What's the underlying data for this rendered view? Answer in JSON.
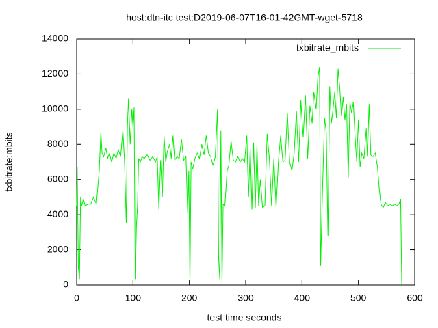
{
  "chart_data": {
    "type": "line",
    "title": "host:dtn-itc test:D2019-06-07T16-01-42GMT-wget-5718",
    "x_label": "test time seconds",
    "y_label": "txbitrate:mbits",
    "xlim": [
      0,
      600
    ],
    "xticks": [
      0,
      100,
      200,
      300,
      400,
      500,
      600
    ],
    "ylim": [
      0,
      14000
    ],
    "yticks": [
      0,
      2000,
      4000,
      6000,
      8000,
      10000,
      12000,
      14000
    ],
    "grid": false,
    "legend": "top-right",
    "x": [
      0,
      1,
      3,
      5,
      7,
      9,
      12,
      15,
      20,
      25,
      30,
      35,
      40,
      43,
      45,
      48,
      52,
      55,
      58,
      62,
      66,
      70,
      74,
      78,
      82,
      85,
      88,
      90,
      92,
      95,
      98,
      100,
      102,
      104,
      106,
      108,
      110,
      113,
      116,
      120,
      125,
      130,
      135,
      140,
      143,
      146,
      149,
      152,
      155,
      158,
      161,
      165,
      168,
      171,
      174,
      178,
      182,
      186,
      190,
      194,
      197,
      199,
      201,
      203,
      206,
      210,
      214,
      218,
      222,
      226,
      230,
      234,
      238,
      242,
      246,
      250,
      252,
      254,
      256,
      258,
      260,
      263,
      267,
      270,
      274,
      278,
      282,
      286,
      290,
      294,
      298,
      302,
      305,
      308,
      311,
      314,
      317,
      320,
      323,
      326,
      330,
      334,
      338,
      342,
      346,
      350,
      354,
      358,
      362,
      366,
      370,
      374,
      378,
      382,
      386,
      390,
      394,
      398,
      402,
      406,
      410,
      414,
      418,
      421,
      425,
      428,
      431,
      433,
      436,
      440,
      443,
      446,
      449,
      452,
      455,
      458,
      461,
      464,
      467,
      470,
      473,
      476,
      479,
      482,
      485,
      488,
      491,
      494,
      497,
      500,
      503,
      506,
      510,
      514,
      516,
      519,
      522,
      526,
      530,
      534,
      537,
      540,
      544,
      548,
      552,
      556,
      560,
      564,
      568,
      572,
      575,
      577
    ],
    "series": [
      {
        "name": "txbitrate_mbits",
        "color": "#00ee00",
        "values": [
          4500,
          6700,
          1000,
          300,
          5000,
          4500,
          4900,
          4500,
          4600,
          4600,
          5000,
          4600,
          6500,
          8700,
          7500,
          7300,
          7800,
          7200,
          7500,
          7000,
          7500,
          7200,
          7700,
          7300,
          8800,
          7000,
          3500,
          9000,
          10600,
          8000,
          10000,
          9000,
          10100,
          300,
          3300,
          4500,
          7200,
          7000,
          7300,
          7200,
          7400,
          7100,
          7300,
          7000,
          7300,
          4300,
          7100,
          5000,
          8500,
          7000,
          7600,
          8000,
          7200,
          8500,
          7100,
          7300,
          7200,
          8300,
          7100,
          7300,
          4100,
          6500,
          100,
          7000,
          6600,
          7200,
          7500,
          7200,
          8000,
          7400,
          8500,
          7500,
          7300,
          6800,
          7300,
          10000,
          1500,
          300,
          8800,
          100,
          4600,
          4500,
          6500,
          6800,
          8200,
          7100,
          7000,
          7300,
          7000,
          7200,
          7000,
          8500,
          5000,
          7800,
          4300,
          8100,
          4400,
          8000,
          4500,
          6000,
          4400,
          4500,
          8600,
          7200,
          4500,
          7200,
          4400,
          7000,
          8500,
          7000,
          7100,
          9800,
          7000,
          6500,
          7500,
          9900,
          7000,
          10500,
          8400,
          10800,
          7200,
          10200,
          9200,
          11000,
          10000,
          11800,
          12400,
          1100,
          5000,
          9500,
          8700,
          2800,
          11300,
          9200,
          10000,
          11000,
          9500,
          12300,
          11200,
          9600,
          10700,
          9400,
          10300,
          6100,
          10400,
          9800,
          10400,
          8500,
          7000,
          9400,
          6700,
          7500,
          7200,
          8900,
          7300,
          10300,
          7400,
          7300,
          7500,
          6700,
          5500,
          4600,
          4400,
          4700,
          4500,
          4600,
          4500,
          4600,
          4500,
          4600,
          4900,
          0
        ]
      }
    ]
  }
}
